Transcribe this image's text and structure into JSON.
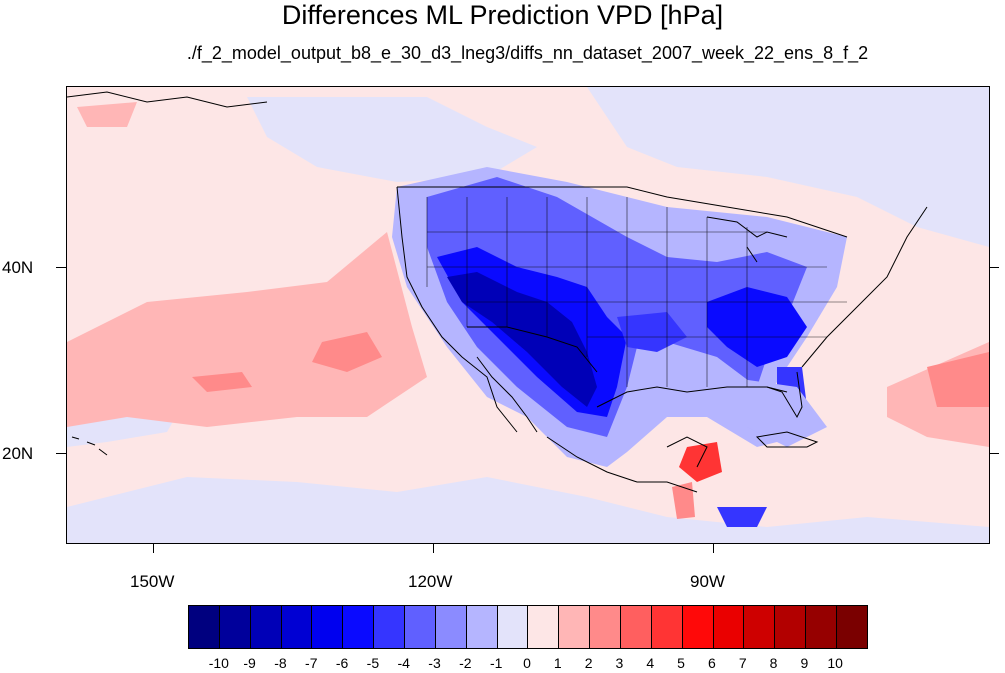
{
  "title": "Differences ML Prediction VPD [hPa]",
  "subtitle": "./f_2_model_output_b8_e_30_d3_lneg3/diffs_nn_dataset_2007_week_22_ens_8_f_2",
  "map": {
    "projection": "cylindrical equidistant",
    "lon_range": [
      -159.5,
      -61.0
    ],
    "lat_range": [
      10.7,
      59.6
    ],
    "lat_labels": [
      "40N",
      "20N"
    ],
    "lon_labels": [
      "150W",
      "120W",
      "90W"
    ],
    "background_color": "#fde6e6"
  },
  "colorbar": {
    "labels": [
      "-10",
      "-9",
      "-8",
      "-7",
      "-6",
      "-5",
      "-4",
      "-3",
      "-2",
      "-1",
      "0",
      "1",
      "2",
      "3",
      "4",
      "5",
      "6",
      "7",
      "8",
      "9",
      "10"
    ],
    "colors": [
      "#00007f",
      "#00009b",
      "#0000b7",
      "#0000d3",
      "#0000ef",
      "#0a0aff",
      "#3535ff",
      "#6060ff",
      "#8b8bff",
      "#b5b5ff",
      "#e3e3fa",
      "#fde6e6",
      "#ffb6b6",
      "#ff8a8a",
      "#ff5f5f",
      "#ff3434",
      "#ff0909",
      "#ea0000",
      "#ce0000",
      "#b20000",
      "#960000",
      "#7a0000"
    ]
  }
}
